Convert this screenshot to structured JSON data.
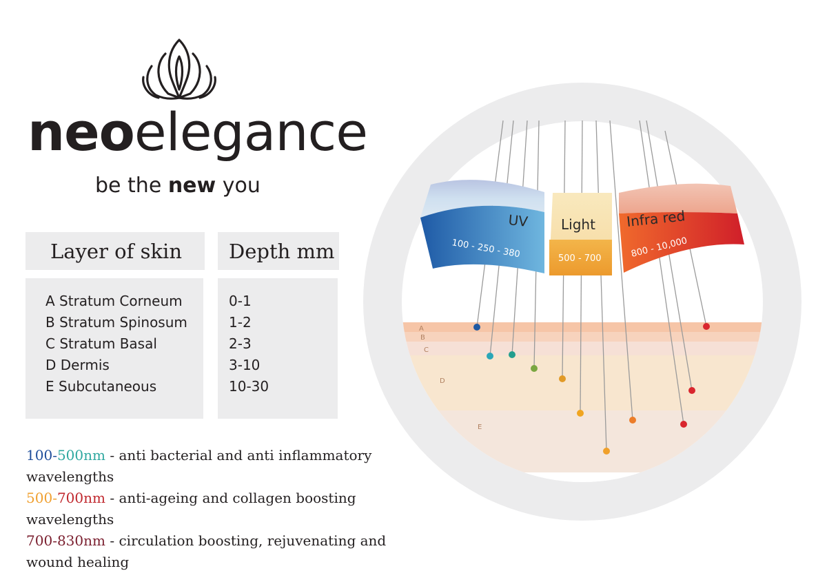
{
  "brand": {
    "name_bold": "neo",
    "name_light": "elegance",
    "tagline_pre": "be the ",
    "tagline_bold": "new",
    "tagline_post": " you",
    "logo_icon": "lotus-icon"
  },
  "table": {
    "header_layer": "Layer of skin",
    "header_depth": "Depth mm",
    "rows": [
      {
        "layer": "A Stratum Corneum",
        "depth": "0-1"
      },
      {
        "layer": "B Stratum Spinosum",
        "depth": "1-2"
      },
      {
        "layer": "C Stratum Basal",
        "depth": "2-3"
      },
      {
        "layer": "D Dermis",
        "depth": "3-10"
      },
      {
        "layer": "E Subcutaneous",
        "depth": "10-30"
      }
    ]
  },
  "notes": [
    {
      "range_a": "100",
      "range_b": "-",
      "range_c": "500",
      "unit": "nm",
      "text": " - anti bacterial and anti inflammatory wavelengths",
      "color_a": "#1f4e9b",
      "color_c": "#2fa8a0"
    },
    {
      "range_a": "500",
      "range_b": "-",
      "range_c": "700",
      "unit": "nm",
      "text": " - anti-ageing and collagen boosting wavelengths",
      "color_a": "#f0a030",
      "color_c": "#c0272d"
    },
    {
      "range_a": "700",
      "range_b": "-",
      "range_c": "830",
      "unit": "nm",
      "text": " - circulation boosting, rejuvenating and wound healing",
      "color_a": "#7a1e2e",
      "color_c": "#7a1e2e"
    }
  ],
  "spectrum": {
    "bands": [
      {
        "name": "UV",
        "range": "100 - 250 - 380",
        "color_top": "#a9b9dc",
        "color_bottom": "#1d5fa8"
      },
      {
        "name": "Light",
        "range": "500 - 700",
        "color_top": "#f6e6b8",
        "color_bottom": "#f0a23a"
      },
      {
        "name": "Infra red",
        "range": "800 - 10,000",
        "color_top": "#f3b8a6",
        "color_bottom": "#d42a2a"
      }
    ],
    "layer_letters": [
      "A",
      "B",
      "C",
      "D",
      "E"
    ]
  }
}
